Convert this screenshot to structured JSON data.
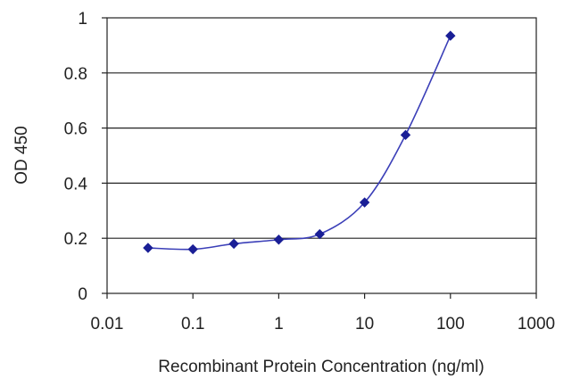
{
  "chart_data": {
    "type": "line",
    "title": "",
    "xlabel": "Recombinant Protein Concentration (ng/ml)",
    "ylabel": "OD 450",
    "x_scale": "log",
    "xlim": [
      0.01,
      1000
    ],
    "ylim": [
      0,
      1
    ],
    "x_ticks": [
      "0.01",
      "0.1",
      "1",
      "10",
      "100",
      "1000"
    ],
    "y_ticks": [
      "0",
      "0.2",
      "0.4",
      "0.6",
      "0.8",
      "1"
    ],
    "grid": "horizontal",
    "series": [
      {
        "x": [
          0.03,
          0.1,
          0.3,
          1,
          3,
          10,
          30,
          100
        ],
        "y": [
          0.165,
          0.16,
          0.18,
          0.195,
          0.215,
          0.33,
          0.575,
          0.935
        ]
      }
    ]
  },
  "colors": {
    "line": "#3b3fb8",
    "marker": "#1a1f96",
    "grid": "#222222",
    "frame": "#222222"
  }
}
